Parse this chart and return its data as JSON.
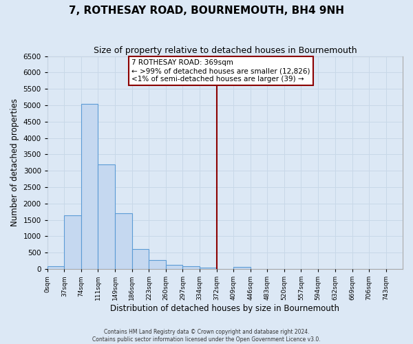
{
  "title": "7, ROTHESAY ROAD, BOURNEMOUTH, BH4 9NH",
  "subtitle": "Size of property relative to detached houses in Bournemouth",
  "xlabel": "Distribution of detached houses by size in Bournemouth",
  "ylabel": "Number of detached properties",
  "bin_edges": [
    0,
    37,
    74,
    111,
    149,
    186,
    223,
    260,
    297,
    334,
    372,
    409,
    446,
    483,
    520,
    557,
    594,
    632,
    669,
    706,
    743,
    780
  ],
  "bin_labels": [
    "0sqm",
    "37sqm",
    "74sqm",
    "111sqm",
    "149sqm",
    "186sqm",
    "223sqm",
    "260sqm",
    "297sqm",
    "334sqm",
    "372sqm",
    "409sqm",
    "446sqm",
    "483sqm",
    "520sqm",
    "557sqm",
    "594sqm",
    "632sqm",
    "669sqm",
    "706sqm",
    "743sqm"
  ],
  "bar_heights": [
    75,
    1650,
    5050,
    3200,
    1700,
    600,
    280,
    130,
    75,
    50,
    0,
    60,
    0,
    0,
    0,
    0,
    0,
    0,
    0,
    0,
    0
  ],
  "bar_color": "#c5d8f0",
  "bar_edge_color": "#5b9bd5",
  "vline_x": 372,
  "vline_color": "#8b0000",
  "annotation_line1": "7 ROTHESAY ROAD: 369sqm",
  "annotation_line2": "← >99% of detached houses are smaller (12,826)",
  "annotation_line3": "<1% of semi-detached houses are larger (39) →",
  "annotation_box_color": "#ffffff",
  "annotation_edge_color": "#8b0000",
  "ylim": [
    0,
    6500
  ],
  "yticks": [
    0,
    500,
    1000,
    1500,
    2000,
    2500,
    3000,
    3500,
    4000,
    4500,
    5000,
    5500,
    6000,
    6500
  ],
  "background_color": "#dce8f5",
  "grid_color": "#c8d8e8",
  "footer_line1": "Contains HM Land Registry data © Crown copyright and database right 2024.",
  "footer_line2": "Contains public sector information licensed under the Open Government Licence v3.0.",
  "title_fontsize": 11,
  "subtitle_fontsize": 9,
  "xlabel_fontsize": 8.5,
  "ylabel_fontsize": 8.5
}
